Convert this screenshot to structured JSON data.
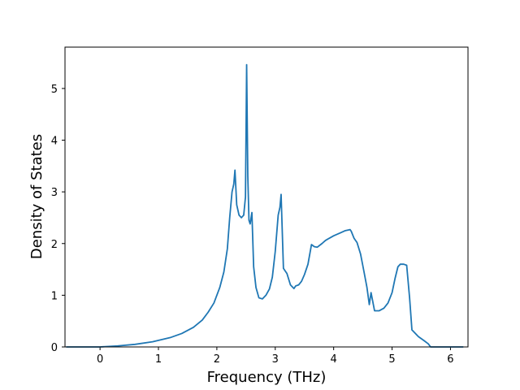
{
  "chart_data": {
    "type": "line",
    "title": "",
    "xlabel": "Frequency (THz)",
    "ylabel": "Density of States",
    "xlim": [
      -0.6,
      6.3
    ],
    "ylim": [
      0,
      5.8
    ],
    "xticks": [
      0,
      1,
      2,
      3,
      4,
      5,
      6
    ],
    "yticks": [
      0,
      1,
      2,
      3,
      4,
      5
    ],
    "grid": false,
    "legend": "none",
    "series": [
      {
        "color": "#1f77b4",
        "x": [
          -0.58,
          0.0,
          0.3,
          0.6,
          0.9,
          1.2,
          1.4,
          1.6,
          1.75,
          1.85,
          1.95,
          2.05,
          2.12,
          2.18,
          2.22,
          2.26,
          2.29,
          2.31,
          2.34,
          2.38,
          2.42,
          2.46,
          2.49,
          2.51,
          2.53,
          2.55,
          2.57,
          2.6,
          2.63,
          2.67,
          2.72,
          2.78,
          2.84,
          2.9,
          2.95,
          3.0,
          3.05,
          3.08,
          3.1,
          3.14,
          3.17,
          3.2,
          3.26,
          3.32,
          3.35,
          3.4,
          3.45,
          3.5,
          3.56,
          3.62,
          3.67,
          3.72,
          3.8,
          3.86,
          3.92,
          4.0,
          4.1,
          4.2,
          4.28,
          4.3,
          4.35,
          4.4,
          4.46,
          4.52,
          4.57,
          4.61,
          4.64,
          4.7,
          4.78,
          4.86,
          4.93,
          5.0,
          5.05,
          5.1,
          5.14,
          5.2,
          5.25,
          5.3,
          5.34,
          5.45,
          5.55,
          5.62,
          5.66,
          6.22
        ],
        "y": [
          0.0,
          0.0,
          0.02,
          0.05,
          0.1,
          0.18,
          0.26,
          0.38,
          0.52,
          0.67,
          0.85,
          1.15,
          1.45,
          1.9,
          2.5,
          3.0,
          3.15,
          3.42,
          2.75,
          2.55,
          2.5,
          2.55,
          2.9,
          5.46,
          3.3,
          2.45,
          2.38,
          2.6,
          1.55,
          1.15,
          0.95,
          0.93,
          1.0,
          1.12,
          1.35,
          1.85,
          2.55,
          2.7,
          2.95,
          1.52,
          1.47,
          1.42,
          1.2,
          1.13,
          1.18,
          1.2,
          1.27,
          1.4,
          1.6,
          1.98,
          1.94,
          1.93,
          2.0,
          2.06,
          2.1,
          2.15,
          2.2,
          2.25,
          2.27,
          2.24,
          2.1,
          2.02,
          1.8,
          1.45,
          1.15,
          0.82,
          1.05,
          0.7,
          0.7,
          0.75,
          0.85,
          1.05,
          1.32,
          1.55,
          1.6,
          1.6,
          1.58,
          0.95,
          0.33,
          0.2,
          0.12,
          0.06,
          0.0,
          0.0
        ]
      }
    ]
  }
}
